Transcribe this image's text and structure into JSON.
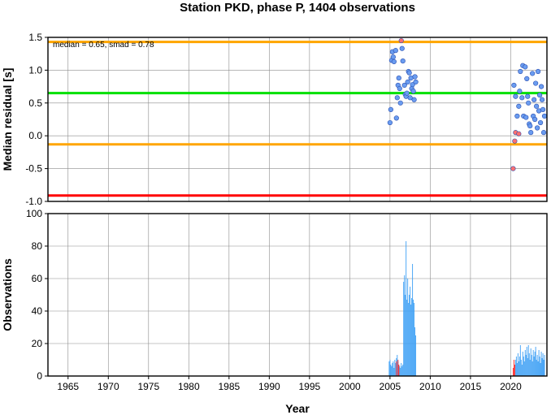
{
  "chart_data": [
    {
      "type": "scatter",
      "title": "Station PKD, phase P, 1404 observations",
      "ylabel": "Median residual [s]",
      "xlim": [
        1962.5,
        2024.5
      ],
      "ylim": [
        -1.0,
        1.5
      ],
      "yticks": [
        "1.5",
        "1.0",
        "0.5",
        "0.0",
        "-0.5",
        "-1.0"
      ],
      "grid": true,
      "annotation": "median = 0.65, smad = 0.78",
      "reference_lines": [
        {
          "value": 1.43,
          "color": "#ffa500"
        },
        {
          "value": 0.65,
          "color": "#00e000"
        },
        {
          "value": -0.13,
          "color": "#ffa500"
        },
        {
          "value": -0.91,
          "color": "#ff0000"
        }
      ],
      "series": [
        {
          "color": "#6a9cf0",
          "points": [
            [
              2005.0,
              0.2
            ],
            [
              2005.1,
              0.4
            ],
            [
              2005.2,
              1.15
            ],
            [
              2005.3,
              1.28
            ],
            [
              2005.4,
              1.2
            ],
            [
              2005.5,
              1.13
            ],
            [
              2005.7,
              1.3
            ],
            [
              2005.8,
              0.27
            ],
            [
              2005.9,
              0.58
            ],
            [
              2006.0,
              0.77
            ],
            [
              2006.1,
              0.88
            ],
            [
              2006.2,
              0.72
            ],
            [
              2006.3,
              0.5
            ],
            [
              2006.5,
              1.33
            ],
            [
              2006.6,
              1.14
            ],
            [
              2006.8,
              0.77
            ],
            [
              2006.9,
              0.63
            ],
            [
              2007.0,
              0.6
            ],
            [
              2007.1,
              0.65
            ],
            [
              2007.2,
              0.82
            ],
            [
              2007.3,
              0.98
            ],
            [
              2007.4,
              0.96
            ],
            [
              2007.5,
              0.58
            ],
            [
              2007.6,
              0.88
            ],
            [
              2007.7,
              0.72
            ],
            [
              2007.8,
              0.78
            ],
            [
              2007.9,
              0.68
            ],
            [
              2008.0,
              0.55
            ],
            [
              2008.1,
              0.9
            ],
            [
              2008.2,
              0.82
            ],
            [
              2020.4,
              0.77
            ],
            [
              2020.6,
              0.6
            ],
            [
              2020.8,
              0.3
            ],
            [
              2021.0,
              0.45
            ],
            [
              2021.1,
              0.68
            ],
            [
              2021.2,
              0.98
            ],
            [
              2021.4,
              0.58
            ],
            [
              2021.5,
              1.07
            ],
            [
              2021.6,
              0.3
            ],
            [
              2021.8,
              1.05
            ],
            [
              2021.9,
              0.28
            ],
            [
              2022.0,
              0.87
            ],
            [
              2022.1,
              0.6
            ],
            [
              2022.2,
              0.5
            ],
            [
              2022.3,
              0.18
            ],
            [
              2022.4,
              0.15
            ],
            [
              2022.5,
              0.05
            ],
            [
              2022.7,
              0.95
            ],
            [
              2022.8,
              0.3
            ],
            [
              2022.9,
              0.55
            ],
            [
              2023.0,
              0.25
            ],
            [
              2023.1,
              0.8
            ],
            [
              2023.2,
              0.45
            ],
            [
              2023.3,
              0.12
            ],
            [
              2023.5,
              0.38
            ],
            [
              2023.6,
              0.62
            ],
            [
              2023.7,
              0.2
            ],
            [
              2023.8,
              0.75
            ],
            [
              2023.9,
              0.55
            ],
            [
              2024.0,
              0.4
            ],
            [
              2024.1,
              0.05
            ],
            [
              2024.2,
              0.3
            ],
            [
              2023.4,
              0.98
            ]
          ]
        },
        {
          "color": "#ff7070",
          "points": [
            [
              2006.4,
              1.45
            ],
            [
              2020.3,
              -0.5
            ],
            [
              2020.5,
              -0.08
            ],
            [
              2020.6,
              0.05
            ],
            [
              2021.0,
              0.03
            ]
          ]
        }
      ]
    },
    {
      "type": "bar",
      "xlabel": "Year",
      "ylabel": "Observations",
      "xlim": [
        1962.5,
        2024.5
      ],
      "ylim": [
        0,
        100
      ],
      "yticks": [
        "100",
        "80",
        "60",
        "40",
        "20",
        "0"
      ],
      "xticks": [
        "1965",
        "1970",
        "1975",
        "1980",
        "1985",
        "1990",
        "1995",
        "2000",
        "2005",
        "2010",
        "2015",
        "2020"
      ],
      "grid": true,
      "series": [
        {
          "color": "#3a9ef5",
          "bars": [
            [
              2004.9,
              9
            ],
            [
              2005.0,
              10
            ],
            [
              2005.1,
              7
            ],
            [
              2005.2,
              6
            ],
            [
              2005.3,
              8
            ],
            [
              2005.4,
              9
            ],
            [
              2005.5,
              5
            ],
            [
              2005.6,
              10
            ],
            [
              2005.7,
              8
            ],
            [
              2005.8,
              11
            ],
            [
              2005.9,
              13
            ],
            [
              2006.0,
              9
            ],
            [
              2006.1,
              7
            ],
            [
              2006.2,
              6
            ],
            [
              2006.3,
              5
            ],
            [
              2006.4,
              8
            ],
            [
              2006.5,
              6
            ],
            [
              2006.6,
              7
            ],
            [
              2006.7,
              58
            ],
            [
              2006.8,
              62
            ],
            [
              2006.9,
              50
            ],
            [
              2007.0,
              83
            ],
            [
              2007.1,
              47
            ],
            [
              2007.2,
              60
            ],
            [
              2007.3,
              45
            ],
            [
              2007.4,
              50
            ],
            [
              2007.5,
              55
            ],
            [
              2007.6,
              44
            ],
            [
              2007.7,
              48
            ],
            [
              2007.8,
              69
            ],
            [
              2007.9,
              47
            ],
            [
              2008.0,
              45
            ],
            [
              2008.1,
              30
            ],
            [
              2008.2,
              25
            ],
            [
              2020.6,
              10
            ],
            [
              2020.7,
              12
            ],
            [
              2020.8,
              8
            ],
            [
              2020.9,
              14
            ],
            [
              2021.0,
              9
            ],
            [
              2021.1,
              12
            ],
            [
              2021.2,
              19
            ],
            [
              2021.3,
              10
            ],
            [
              2021.4,
              7
            ],
            [
              2021.5,
              15
            ],
            [
              2021.6,
              12
            ],
            [
              2021.7,
              9
            ],
            [
              2021.8,
              16
            ],
            [
              2021.9,
              13
            ],
            [
              2022.0,
              18
            ],
            [
              2022.1,
              11
            ],
            [
              2022.2,
              19
            ],
            [
              2022.3,
              14
            ],
            [
              2022.4,
              10
            ],
            [
              2022.5,
              17
            ],
            [
              2022.6,
              13
            ],
            [
              2022.7,
              9
            ],
            [
              2022.8,
              16
            ],
            [
              2022.9,
              12
            ],
            [
              2023.0,
              15
            ],
            [
              2023.1,
              18
            ],
            [
              2023.2,
              10
            ],
            [
              2023.3,
              13
            ],
            [
              2023.4,
              9
            ],
            [
              2023.5,
              16
            ],
            [
              2023.6,
              12
            ],
            [
              2023.7,
              8
            ],
            [
              2023.8,
              15
            ],
            [
              2023.9,
              11
            ],
            [
              2024.0,
              14
            ],
            [
              2024.1,
              10
            ],
            [
              2024.2,
              13
            ]
          ]
        },
        {
          "color": "#ff2020",
          "bars": [
            [
              2005.8,
              9
            ],
            [
              2006.0,
              10
            ],
            [
              2006.1,
              7
            ],
            [
              2020.3,
              5
            ],
            [
              2020.4,
              10
            ],
            [
              2020.5,
              7
            ]
          ]
        }
      ]
    }
  ]
}
